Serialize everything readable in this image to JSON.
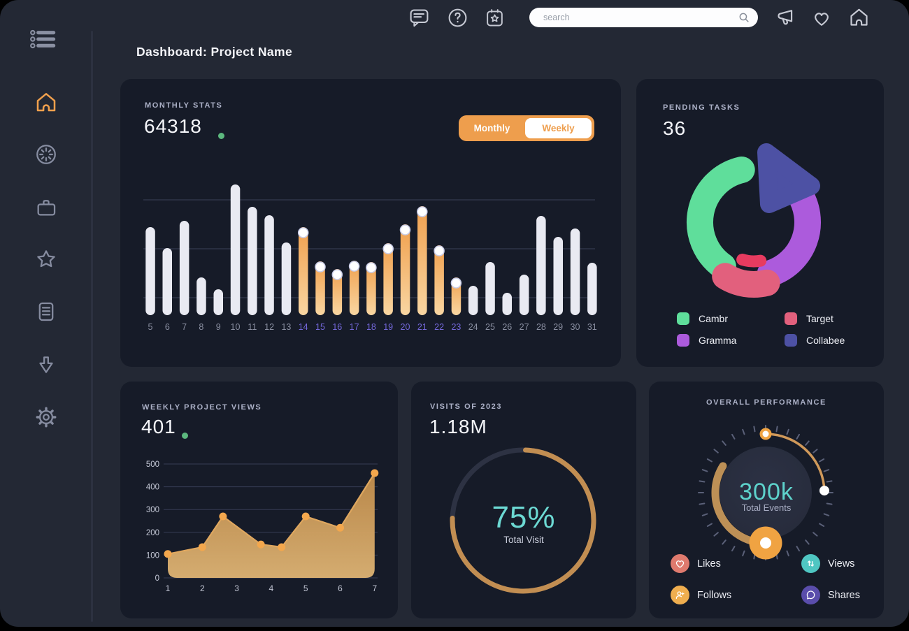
{
  "page": {
    "title": "Dashboard: Project Name"
  },
  "topbar": {
    "search_placeholder": "search",
    "icons_left": [
      "chat-icon",
      "help-icon",
      "calendar-star-icon"
    ],
    "icons_right": [
      "megaphone-icon",
      "heart-icon",
      "home-icon"
    ]
  },
  "sidebar": {
    "active_item": "home",
    "items": [
      "menu-list",
      "home",
      "activity",
      "briefcase",
      "star",
      "notes",
      "download",
      "settings"
    ]
  },
  "cards": {
    "monthly_stats": {
      "label": "MONTHLY STATS",
      "value": "64318",
      "trend_dot_color": "#5CB87E",
      "toggle": {
        "monthly": "Monthly",
        "weekly": "Weekly",
        "knob_on": "Weekly"
      },
      "chart_data": {
        "type": "bar",
        "categories": [
          "5",
          "6",
          "7",
          "8",
          "9",
          "10",
          "11",
          "12",
          "13",
          "14",
          "15",
          "16",
          "17",
          "18",
          "19",
          "20",
          "21",
          "22",
          "23",
          "24",
          "25",
          "26",
          "27",
          "28",
          "29",
          "30",
          "31"
        ],
        "values": [
          126,
          96,
          135,
          54,
          37,
          187,
          155,
          143,
          104,
          126,
          77,
          66,
          78,
          76,
          103,
          130,
          156,
          100,
          54,
          42,
          76,
          32,
          58,
          142,
          112,
          124,
          75
        ],
        "ylim": [
          0,
          200
        ],
        "gridline_levels": [
          25,
          95,
          165
        ],
        "highlight_range": [
          14,
          23
        ],
        "bar_color": "#E9EAF2",
        "highlight_gradient": [
          "#F0A04E",
          "#F9D6A2"
        ],
        "label_color": "#8A8FA1",
        "highlight_label_color": "#7468DB"
      }
    },
    "pending_tasks": {
      "label": "PENDING TASKS",
      "value": "36",
      "chart_data": {
        "type": "donut",
        "segments": [
          {
            "name": "Cambr",
            "color": "#5FDE9B",
            "start_deg": 215,
            "end_deg": 347
          },
          {
            "name": "Gramma",
            "color": "#AC5BDC",
            "start_deg": 57,
            "end_deg": 162
          },
          {
            "name": "Target",
            "color": "#E2607D",
            "start_deg": 166,
            "end_deg": 212,
            "pulled_out": true,
            "accent_color": "#E73B60"
          },
          {
            "name": "Collabee",
            "color": "#4D51A4",
            "start_deg": 5,
            "end_deg": 52,
            "exploded_triangle": true
          }
        ]
      },
      "legend": [
        {
          "label": "Cambr",
          "color": "#5FDE9B"
        },
        {
          "label": "Target",
          "color": "#E2607D"
        },
        {
          "label": "Gramma",
          "color": "#AC5BDC"
        },
        {
          "label": "Collabee",
          "color": "#4D51A4"
        }
      ]
    },
    "weekly_views": {
      "label": "WEEKLY PROJECT VIEWS",
      "value": "401",
      "trend_dot_color": "#5CB87E",
      "chart_data": {
        "type": "area",
        "x": [
          1,
          2,
          2.6,
          3.7,
          4.3,
          5,
          6,
          7
        ],
        "y": [
          105,
          135,
          270,
          147,
          135,
          270,
          220,
          460
        ],
        "x_ticks": [
          "1",
          "2",
          "3",
          "4",
          "5",
          "6",
          "7"
        ],
        "y_ticks": [
          500,
          400,
          300,
          200,
          100,
          0
        ],
        "ylim": [
          0,
          500
        ],
        "line_color": "#DFA75F",
        "dot_color": "#F3A74D",
        "fill_gradient": [
          "#C08C4B",
          "#DCB273"
        ],
        "tick_color": "#C6CAD8"
      }
    },
    "visits": {
      "label": "VISITS OF 2023",
      "value": "1.18M",
      "chart_data": {
        "type": "radial-progress",
        "percent": 75,
        "center_text": "75%",
        "caption": "Total Visit",
        "arc_color": "#C28E52",
        "track_color": "#2D3243",
        "center_text_color": "#6CD9D3"
      }
    },
    "performance": {
      "label": "OVERALL PERFORMANCE",
      "center_value": "300k",
      "center_caption": "Total Events",
      "gauge": {
        "ticks": 36,
        "thin_arc_deg": [
          6,
          88
        ],
        "thick_arc_deg": [
          184,
          302
        ],
        "thin_color": "#D0995A",
        "thick_color": "#BD9056",
        "knob_color": "#F0A342",
        "tick_color": "#5A6078"
      },
      "legend": [
        {
          "label": "Likes",
          "icon": "heart-icon",
          "color": "#DF7A6E"
        },
        {
          "label": "Views",
          "icon": "arrows-up-down-icon",
          "color": "#4FC6C2"
        },
        {
          "label": "Follows",
          "icon": "user-plus-icon",
          "color": "#EFAE4F"
        },
        {
          "label": "Shares",
          "icon": "chat-bubble-icon",
          "color": "#5A4DAB"
        }
      ]
    }
  }
}
